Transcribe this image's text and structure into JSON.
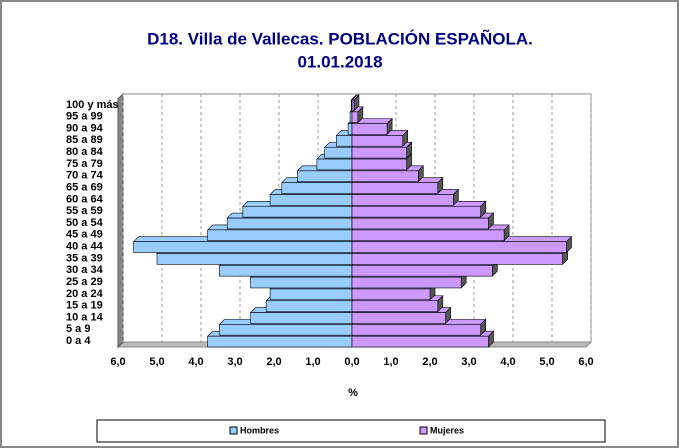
{
  "chart_data": {
    "type": "population-pyramid",
    "title": "D18. Villa de Vallecas. POBLACIÓN ESPAÑOLA.",
    "subtitle": "01.01.2018",
    "xlabel": "%",
    "categories": [
      "0 a 4",
      "5 a 9",
      "10 a 14",
      "15 a 19",
      "20 a 24",
      "25 a 29",
      "30 a 34",
      "35 a 39",
      "40 a 44",
      "45 a 49",
      "50 a 54",
      "55 a 59",
      "60 a 64",
      "65 a 69",
      "70 a 74",
      "75 a 79",
      "80 a 84",
      "85 a 89",
      "90 a 94",
      "95 a 99",
      "100 y más"
    ],
    "series": [
      {
        "name": "Hombres",
        "color": "#99ccff",
        "values": [
          3.7,
          3.4,
          2.6,
          2.2,
          2.1,
          2.6,
          3.4,
          5.0,
          5.6,
          3.7,
          3.2,
          2.8,
          2.1,
          1.8,
          1.4,
          0.9,
          0.7,
          0.4,
          0.1,
          0.05,
          0.02
        ]
      },
      {
        "name": "Mujeres",
        "color": "#cc99ff",
        "values": [
          3.5,
          3.3,
          2.4,
          2.2,
          2.0,
          2.8,
          3.6,
          5.4,
          5.5,
          3.9,
          3.5,
          3.3,
          2.6,
          2.2,
          1.7,
          1.4,
          1.4,
          1.3,
          0.9,
          0.15,
          0.05
        ]
      }
    ],
    "xlim": [
      -6,
      6
    ],
    "xticks": [
      {
        "value": -6,
        "label": "6,0"
      },
      {
        "value": -5,
        "label": "5,0"
      },
      {
        "value": -4,
        "label": "4,0"
      },
      {
        "value": -3,
        "label": "3,0"
      },
      {
        "value": -2,
        "label": "2,0"
      },
      {
        "value": -1,
        "label": "1,0"
      },
      {
        "value": 0,
        "label": "0,0"
      },
      {
        "value": 1,
        "label": "1,0"
      },
      {
        "value": 2,
        "label": "2,0"
      },
      {
        "value": 3,
        "label": "3,0"
      },
      {
        "value": 4,
        "label": "4,0"
      },
      {
        "value": 5,
        "label": "5,0"
      },
      {
        "value": 6,
        "label": "6,0"
      }
    ],
    "grid": true,
    "legend": "bottom"
  }
}
